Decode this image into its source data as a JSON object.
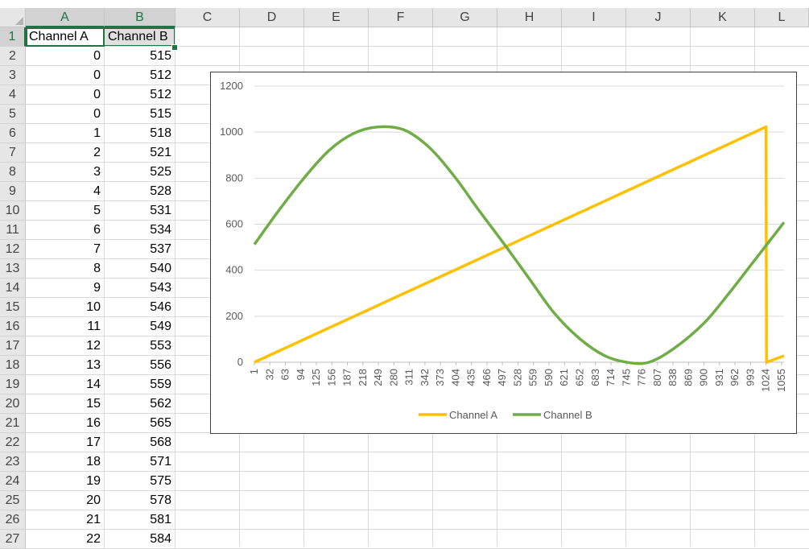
{
  "columns": [
    "A",
    "B",
    "C",
    "D",
    "E",
    "F",
    "G",
    "H",
    "I",
    "J",
    "K",
    "L"
  ],
  "rows": [
    "1",
    "2",
    "3",
    "4",
    "5",
    "6",
    "7",
    "8",
    "9",
    "10",
    "11",
    "12",
    "13",
    "14",
    "15",
    "16",
    "17",
    "18",
    "19",
    "20",
    "21",
    "22",
    "23",
    "24",
    "25",
    "26",
    "27"
  ],
  "header_row": {
    "a": "Channel A",
    "b": "Channel B"
  },
  "data_rows": [
    [
      "0",
      "515"
    ],
    [
      "0",
      "512"
    ],
    [
      "0",
      "512"
    ],
    [
      "0",
      "515"
    ],
    [
      "1",
      "518"
    ],
    [
      "2",
      "521"
    ],
    [
      "3",
      "525"
    ],
    [
      "4",
      "528"
    ],
    [
      "5",
      "531"
    ],
    [
      "6",
      "534"
    ],
    [
      "7",
      "537"
    ],
    [
      "8",
      "540"
    ],
    [
      "9",
      "543"
    ],
    [
      "10",
      "546"
    ],
    [
      "11",
      "549"
    ],
    [
      "12",
      "553"
    ],
    [
      "13",
      "556"
    ],
    [
      "14",
      "559"
    ],
    [
      "15",
      "562"
    ],
    [
      "16",
      "565"
    ],
    [
      "17",
      "568"
    ],
    [
      "18",
      "571"
    ],
    [
      "19",
      "575"
    ],
    [
      "20",
      "578"
    ],
    [
      "21",
      "581"
    ],
    [
      "22",
      "584"
    ]
  ],
  "chart_data": {
    "type": "line",
    "title": "",
    "xlabel": "",
    "ylabel": "",
    "ylim": [
      0,
      1200
    ],
    "yticks": [
      "0",
      "200",
      "400",
      "600",
      "800",
      "1000",
      "1200"
    ],
    "x_tick_labels": [
      "1",
      "32",
      "63",
      "94",
      "125",
      "156",
      "187",
      "218",
      "249",
      "280",
      "311",
      "342",
      "373",
      "404",
      "435",
      "466",
      "497",
      "528",
      "559",
      "590",
      "621",
      "652",
      "683",
      "714",
      "745",
      "776",
      "807",
      "838",
      "869",
      "900",
      "931",
      "962",
      "993",
      "1024",
      "1055"
    ],
    "x_range": [
      1,
      1060
    ],
    "grid": true,
    "legend": "bottom",
    "series": [
      {
        "name": "Channel A",
        "color": "#FFC000",
        "points": [
          [
            1,
            0
          ],
          [
            1024,
            1023
          ],
          [
            1025,
            0
          ],
          [
            1060,
            28
          ]
        ]
      },
      {
        "name": "Channel B",
        "color": "#70AD47",
        "points": [
          [
            1,
            512
          ],
          [
            50,
            660
          ],
          [
            100,
            800
          ],
          [
            150,
            920
          ],
          [
            200,
            995
          ],
          [
            249,
            1023
          ],
          [
            300,
            1010
          ],
          [
            350,
            935
          ],
          [
            400,
            810
          ],
          [
            450,
            660
          ],
          [
            500,
            515
          ],
          [
            550,
            365
          ],
          [
            600,
            215
          ],
          [
            650,
            105
          ],
          [
            700,
            30
          ],
          [
            745,
            0
          ],
          [
            790,
            0
          ],
          [
            840,
            60
          ],
          [
            900,
            170
          ],
          [
            950,
            300
          ],
          [
            1000,
            440
          ],
          [
            1060,
            608
          ]
        ]
      }
    ]
  }
}
